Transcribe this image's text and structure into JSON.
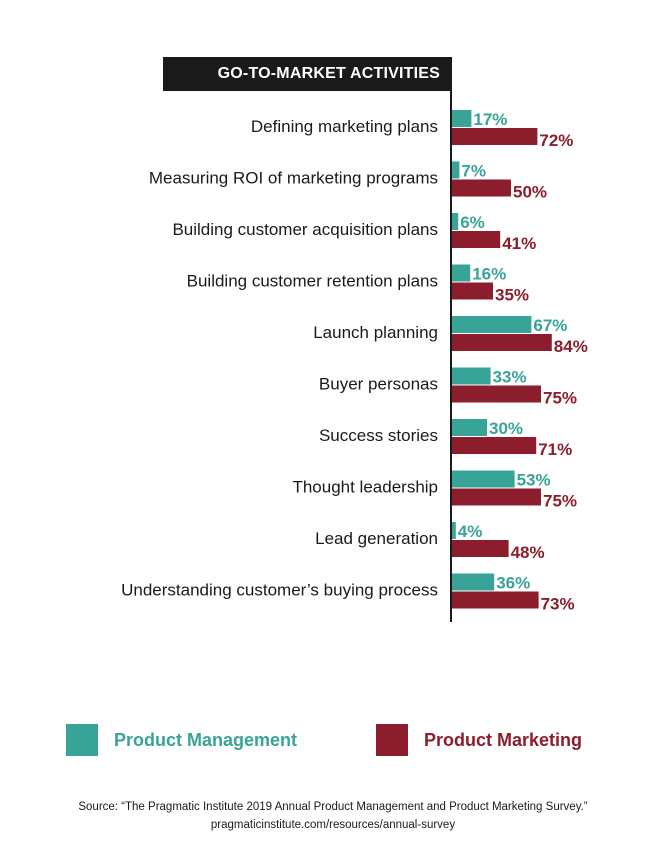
{
  "chart_data": {
    "type": "bar",
    "orientation": "horizontal",
    "title": "GO-TO-MARKET ACTIVITIES",
    "categories": [
      "Defining marketing plans",
      "Measuring ROI of marketing programs",
      "Building customer acquisition plans",
      "Building customer retention plans",
      "Launch planning",
      "Buyer personas",
      "Success stories",
      "Thought leadership",
      "Lead generation",
      "Understanding customer’s buying process"
    ],
    "series": [
      {
        "name": "Product Management",
        "color": "#38a497",
        "values": [
          17,
          7,
          6,
          16,
          67,
          33,
          30,
          53,
          4,
          36
        ],
        "labels": [
          "17%",
          "7%",
          "6%",
          "16%",
          "67%",
          "33%",
          "30%",
          "53%",
          "4%",
          "36%"
        ]
      },
      {
        "name": "Product Marketing",
        "color": "#8b1d2c",
        "values": [
          72,
          50,
          41,
          35,
          84,
          75,
          71,
          75,
          48,
          73
        ],
        "labels": [
          "72%",
          "50%",
          "41%",
          "35%",
          "84%",
          "75%",
          "71%",
          "75%",
          "48%",
          "73%"
        ]
      }
    ],
    "xlim": [
      0,
      100
    ],
    "grid": false,
    "legend": "bottom"
  },
  "legend": {
    "pm_label": "Product Management",
    "pmk_label": "Product Marketing"
  },
  "source": {
    "line1": "Source: “The Pragmatic Institute 2019 Annual Product Management and Product Marketing Survey.”",
    "line2": "pragmaticinstitute.com/resources/annual-survey"
  }
}
